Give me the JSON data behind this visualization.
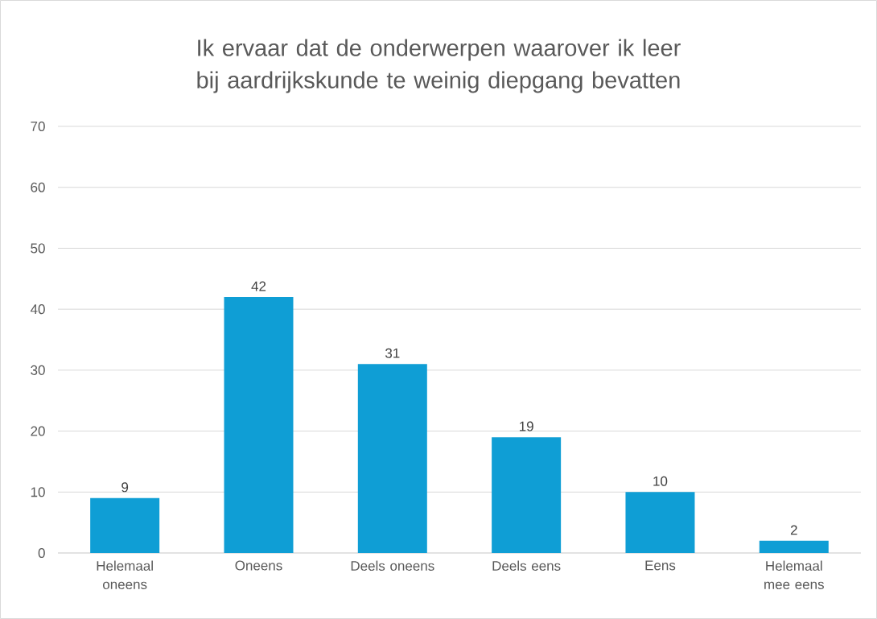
{
  "chart_data": {
    "type": "bar",
    "title": "Ik ervaar dat de onderwerpen waarover ik leer bij aardrijkskunde te weinig diepgang bevatten",
    "categories": [
      "Helemaal oneens",
      "Oneens",
      "Deels oneens",
      "Deels eens",
      "Eens",
      "Helemaal mee eens"
    ],
    "values": [
      9,
      42,
      31,
      19,
      10,
      2
    ],
    "color": "#0f9ed5",
    "ylim": [
      0,
      70
    ],
    "yticks": [
      0,
      10,
      20,
      30,
      40,
      50,
      60,
      70
    ],
    "grid": true,
    "data_labels": true
  }
}
